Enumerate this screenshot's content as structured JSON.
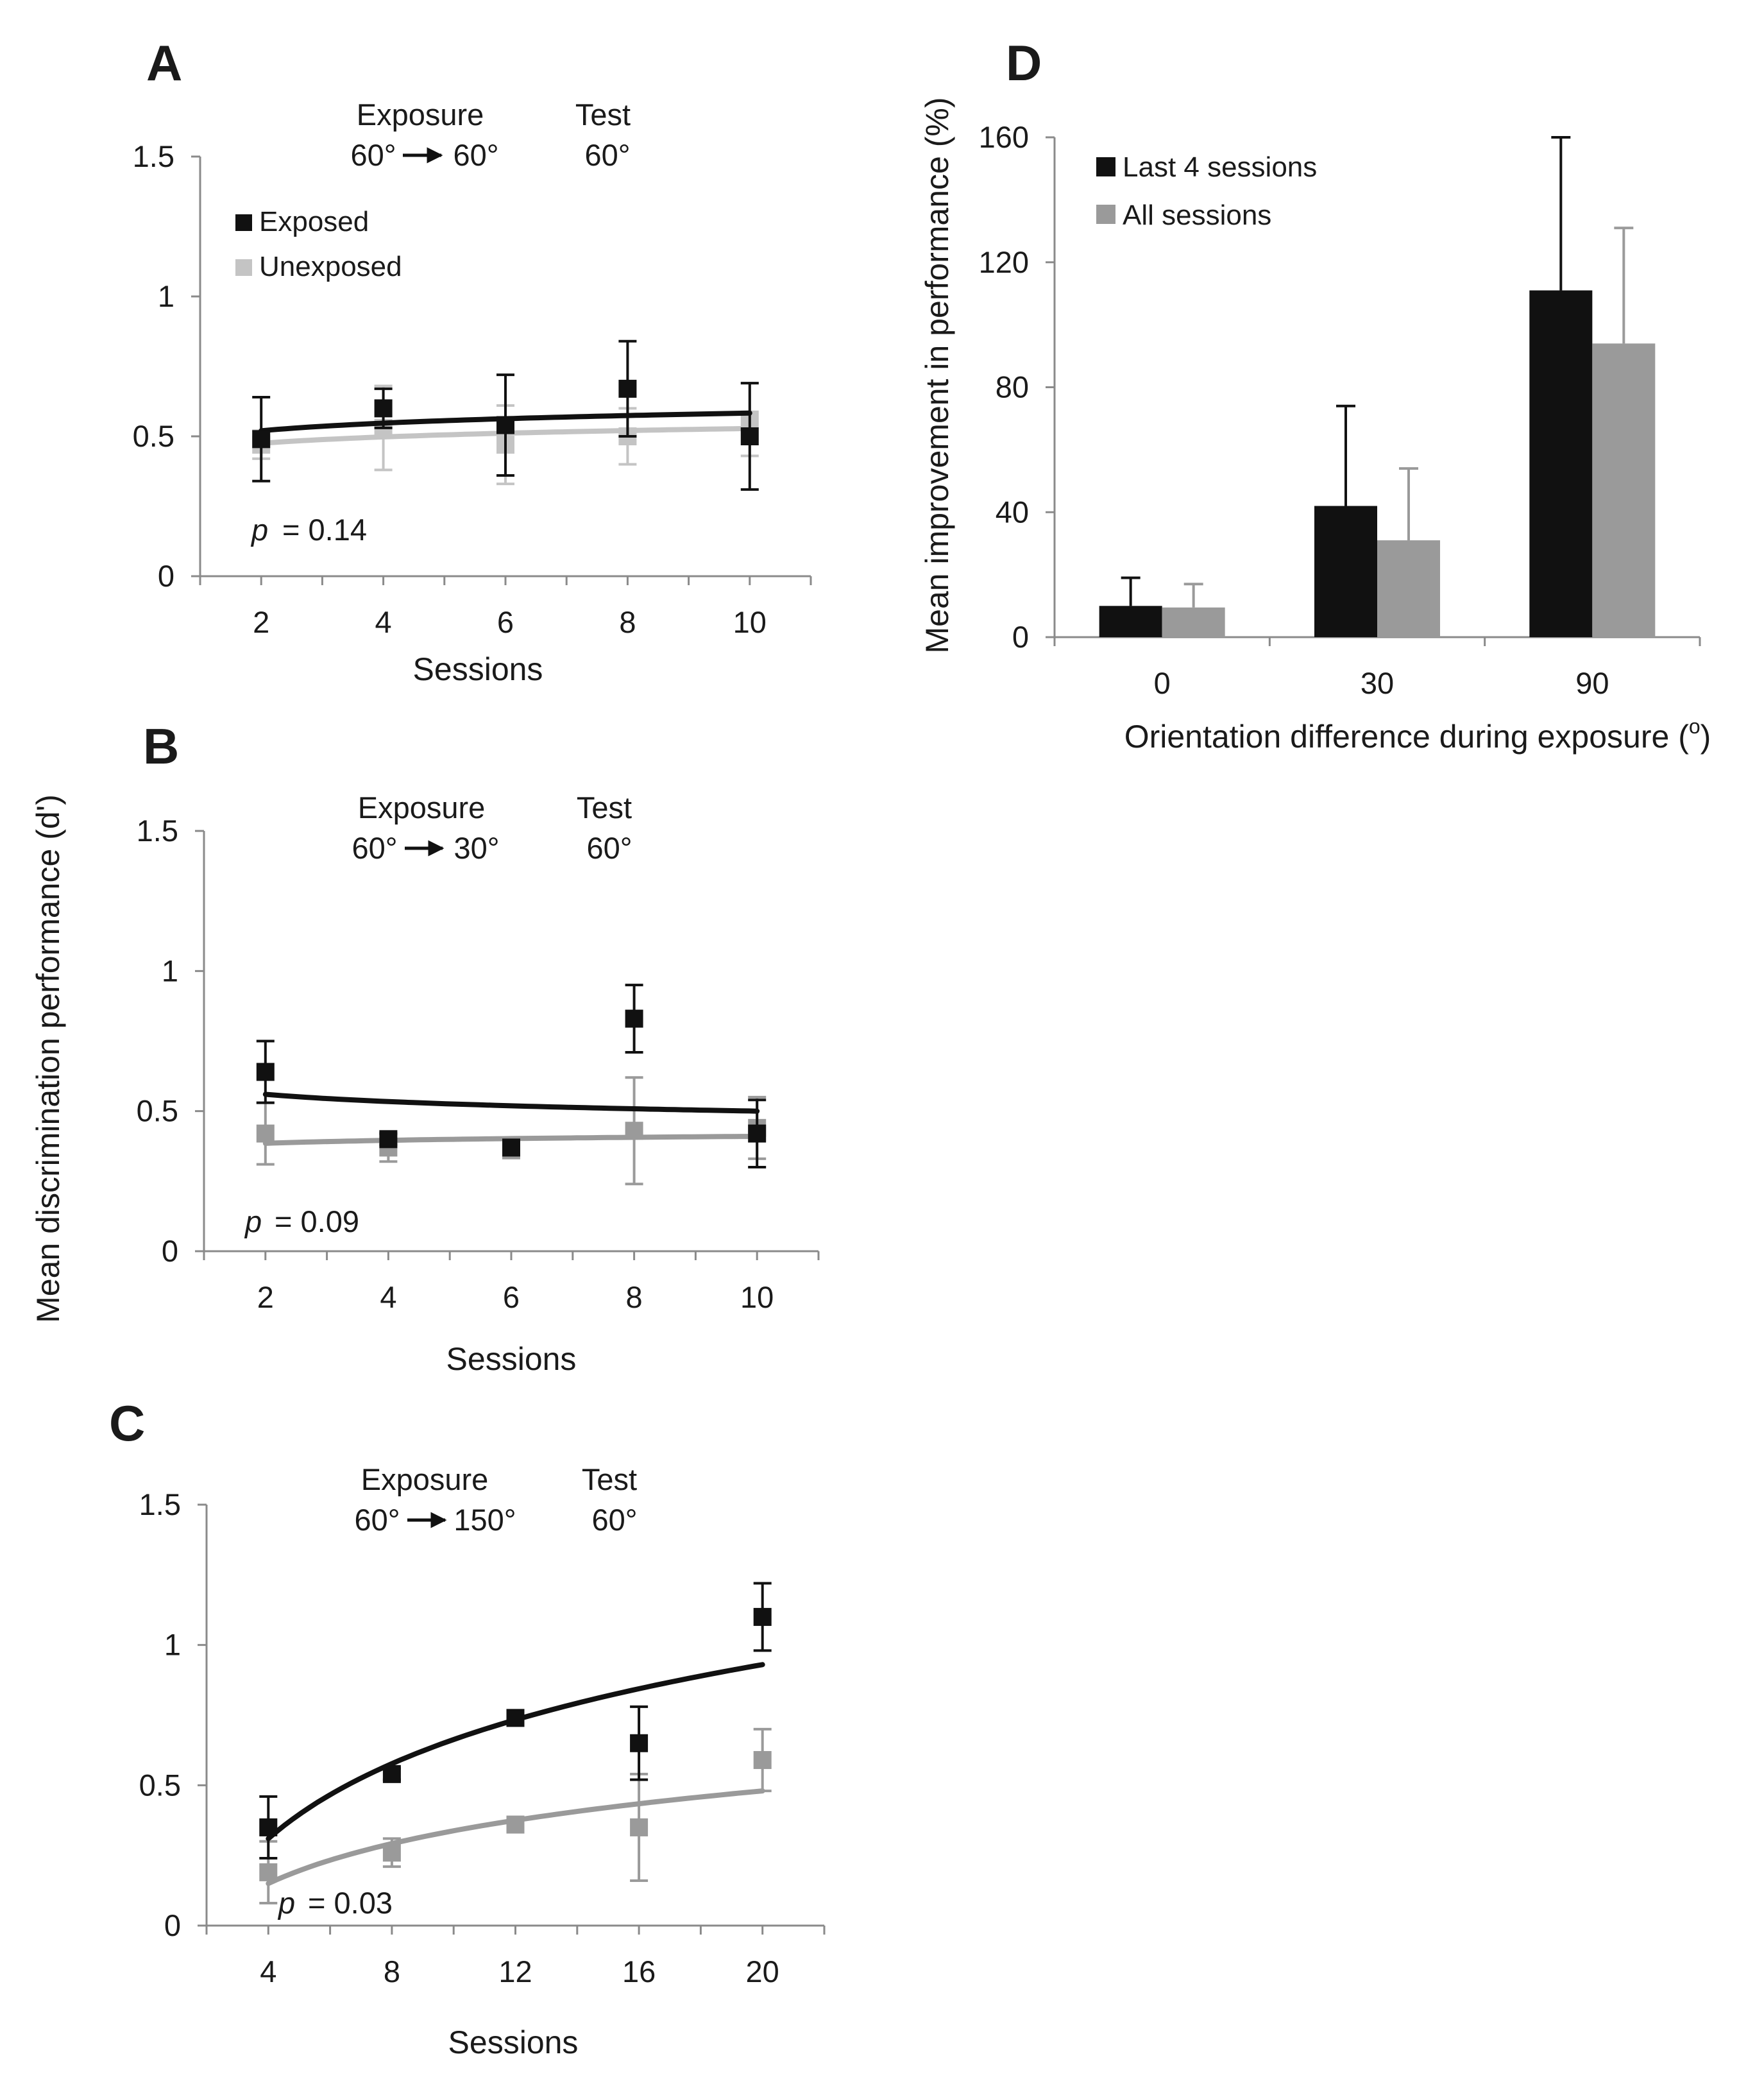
{
  "shared_ylabel": "Mean discrimination performance (d')",
  "colors": {
    "exposed": "#111111",
    "unexposed_A": "#c4c4c4",
    "unexposed": "#9a9a9a",
    "last4": "#111111",
    "all": "#9a9a9a",
    "axis": "#8a8a8a"
  },
  "chart_data": [
    {
      "panel": "A",
      "type": "scatter",
      "header": {
        "exposure_title": "Exposure",
        "exposure_from": "60°",
        "exposure_to": "60°",
        "test_title": "Test",
        "test_value": "60°"
      },
      "xlabel": "Sessions",
      "xlim": [
        1,
        11
      ],
      "xticks": [
        2,
        4,
        6,
        8,
        10
      ],
      "ylim": [
        0,
        1.5
      ],
      "yticks": [
        0,
        0.5,
        1,
        1.5
      ],
      "yticklabels": [
        "0",
        "0.5",
        "1",
        "1.5"
      ],
      "legend": {
        "placement": "top-left",
        "entries": [
          "Exposed",
          "Unexposed"
        ]
      },
      "p_label": "p",
      "p_value": "= 0.14",
      "series": [
        {
          "name": "Exposed",
          "color": "#111111",
          "x": [
            2,
            4,
            6,
            8,
            10
          ],
          "y": [
            0.49,
            0.6,
            0.54,
            0.67,
            0.5
          ],
          "err": [
            0.15,
            0.07,
            0.18,
            0.17,
            0.19
          ],
          "fit": [
            0.52,
            0.583
          ]
        },
        {
          "name": "Unexposed",
          "color": "#c4c4c4",
          "x": [
            2,
            4,
            6,
            8,
            10
          ],
          "y": [
            0.47,
            0.53,
            0.47,
            0.5,
            0.56
          ],
          "err": [
            0.05,
            0.15,
            0.14,
            0.1,
            0.13
          ],
          "fit": [
            0.475,
            0.528
          ]
        }
      ]
    },
    {
      "panel": "B",
      "type": "scatter",
      "header": {
        "exposure_title": "Exposure",
        "exposure_from": "60°",
        "exposure_to": "30°",
        "test_title": "Test",
        "test_value": "60°"
      },
      "xlabel": "Sessions",
      "xlim": [
        1,
        11
      ],
      "xticks": [
        2,
        4,
        6,
        8,
        10
      ],
      "ylim": [
        0,
        1.5
      ],
      "yticks": [
        0,
        0.5,
        1,
        1.5
      ],
      "yticklabels": [
        "0",
        "0.5",
        "1",
        "1.5"
      ],
      "p_label": "p",
      "p_value": "= 0.09",
      "series": [
        {
          "name": "Exposed",
          "color": "#111111",
          "x": [
            2,
            4,
            6,
            8,
            10
          ],
          "y": [
            0.64,
            0.4,
            0.37,
            0.83,
            0.42
          ],
          "err": [
            0.11,
            0.02,
            0.02,
            0.12,
            0.12
          ],
          "fit": [
            0.56,
            0.5
          ]
        },
        {
          "name": "Unexposed",
          "color": "#9a9a9a",
          "x": [
            2,
            4,
            6,
            8,
            10
          ],
          "y": [
            0.42,
            0.37,
            0.36,
            0.43,
            0.44
          ],
          "err": [
            0.11,
            0.05,
            0.02,
            0.19,
            0.11
          ],
          "fit": [
            0.385,
            0.41
          ]
        }
      ]
    },
    {
      "panel": "C",
      "type": "scatter",
      "header": {
        "exposure_title": "Exposure",
        "exposure_from": "60°",
        "exposure_to": "150°",
        "test_title": "Test",
        "test_value": "60°"
      },
      "xlabel": "Sessions",
      "xlim": [
        2,
        22
      ],
      "xticks": [
        4,
        8,
        12,
        16,
        20
      ],
      "ylim": [
        0,
        1.5
      ],
      "yticks": [
        0,
        0.5,
        1,
        1.5
      ],
      "yticklabels": [
        "0",
        "0.5",
        "1",
        "1.5"
      ],
      "p_label": "p",
      "p_value": "= 0.03",
      "series": [
        {
          "name": "Exposed",
          "color": "#111111",
          "x": [
            4,
            8,
            12,
            16,
            20
          ],
          "y": [
            0.35,
            0.54,
            0.74,
            0.65,
            1.1
          ],
          "err": [
            0.11,
            0.02,
            0.02,
            0.13,
            0.12
          ],
          "fit": [
            0.31,
            0.93
          ]
        },
        {
          "name": "Unexposed",
          "color": "#9a9a9a",
          "x": [
            4,
            8,
            12,
            16,
            20
          ],
          "y": [
            0.19,
            0.26,
            0.36,
            0.35,
            0.59
          ],
          "err": [
            0.11,
            0.05,
            0.02,
            0.19,
            0.11
          ],
          "fit": [
            0.15,
            0.48
          ]
        }
      ]
    },
    {
      "panel": "D",
      "type": "bar",
      "title": "",
      "xlabel": "Orientation difference during exposure (",
      "xlabel_sup": "o",
      "xlabel_tail": ")",
      "ylabel": "Mean improvement in performance (%)",
      "categories": [
        "0",
        "30",
        "90"
      ],
      "ylim": [
        0,
        160
      ],
      "yticks": [
        0,
        40,
        80,
        120,
        160
      ],
      "legend": {
        "placement": "top-left",
        "entries": [
          "Last 4 sessions",
          "All sessions"
        ]
      },
      "series": [
        {
          "name": "Last 4 sessions",
          "color": "#111111",
          "values": [
            10,
            42,
            111
          ],
          "err": [
            9,
            32,
            49
          ]
        },
        {
          "name": "All sessions",
          "color": "#9a9a9a",
          "values": [
            9.5,
            31,
            94
          ],
          "err": [
            7.5,
            23,
            37
          ]
        }
      ]
    }
  ]
}
